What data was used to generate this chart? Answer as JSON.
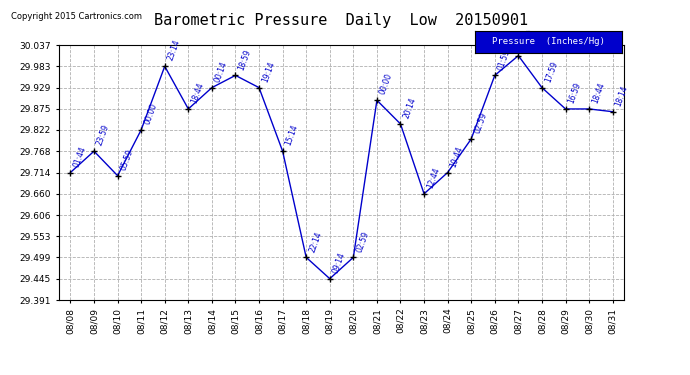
{
  "title": "Barometric Pressure  Daily  Low  20150901",
  "copyright": "Copyright 2015 Cartronics.com",
  "legend_label": "Pressure  (Inches/Hg)",
  "x_labels": [
    "08/08",
    "08/09",
    "08/10",
    "08/11",
    "08/12",
    "08/13",
    "08/14",
    "08/15",
    "08/16",
    "08/17",
    "08/18",
    "08/19",
    "08/20",
    "08/21",
    "08/22",
    "08/23",
    "08/24",
    "08/25",
    "08/26",
    "08/27",
    "08/28",
    "08/29",
    "08/30",
    "08/31"
  ],
  "time_labels": [
    "01:44",
    "23:59",
    "05:59",
    "00:00",
    "23:14",
    "18:44",
    "00:14",
    "18:59",
    "19:14",
    "15:14",
    "22:14",
    "09:14",
    "02:59",
    "00:00",
    "20:14",
    "12:44",
    "10:44",
    "02:59",
    "01:59",
    "16:59",
    "17:59",
    "16:59",
    "18:44",
    "18:14"
  ],
  "y_values": [
    29.714,
    29.768,
    29.706,
    29.822,
    29.983,
    29.875,
    29.929,
    29.96,
    29.929,
    29.768,
    29.499,
    29.445,
    29.499,
    29.897,
    29.837,
    29.66,
    29.714,
    29.799,
    29.96,
    30.01,
    29.929,
    29.875,
    29.875,
    29.868
  ],
  "y_ticks": [
    29.391,
    29.445,
    29.499,
    29.553,
    29.606,
    29.66,
    29.714,
    29.768,
    29.822,
    29.875,
    29.929,
    29.983,
    30.037
  ],
  "y_min": 29.391,
  "y_max": 30.037,
  "line_color": "#0000cc",
  "marker_color": "#000000",
  "bg_color": "#ffffff",
  "grid_color": "#b0b0b0",
  "title_fontsize": 11,
  "legend_bg": "#0000cc",
  "legend_text_color": "#ffffff"
}
